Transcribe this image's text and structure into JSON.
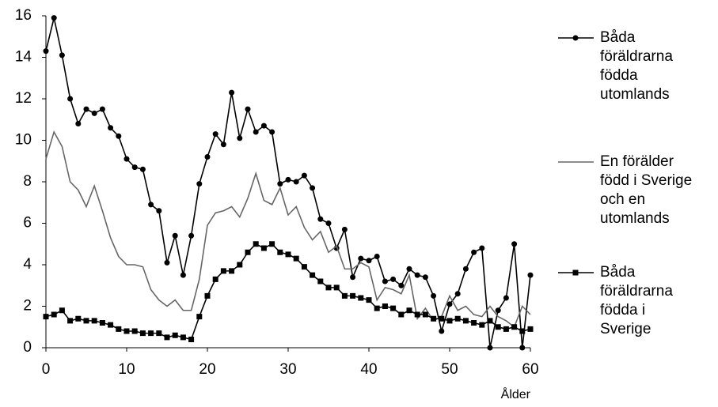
{
  "chart_data": {
    "type": "line",
    "x_label": "Ålder",
    "x": [
      0,
      1,
      2,
      3,
      4,
      5,
      6,
      7,
      8,
      9,
      10,
      11,
      12,
      13,
      14,
      15,
      16,
      17,
      18,
      19,
      20,
      21,
      22,
      23,
      24,
      25,
      26,
      27,
      28,
      29,
      30,
      31,
      32,
      33,
      34,
      35,
      36,
      37,
      38,
      39,
      40,
      41,
      42,
      43,
      44,
      45,
      46,
      47,
      48,
      49,
      50,
      51,
      52,
      53,
      54,
      55,
      56,
      57,
      58,
      59,
      60
    ],
    "xlim": [
      0,
      60
    ],
    "xticks": [
      0,
      10,
      20,
      30,
      40,
      50,
      60
    ],
    "ylim": [
      0,
      16
    ],
    "yticks": [
      0,
      2,
      4,
      6,
      8,
      10,
      12,
      14,
      16
    ],
    "grid": false,
    "series": [
      {
        "name": "Båda föräldrarna födda utomlands",
        "color": "#000000",
        "marker": "circle",
        "values": [
          14.3,
          15.9,
          14.1,
          12.0,
          10.8,
          11.5,
          11.3,
          11.5,
          10.6,
          10.2,
          9.1,
          8.7,
          8.6,
          6.9,
          6.6,
          4.1,
          5.4,
          3.5,
          5.4,
          7.9,
          9.2,
          10.3,
          9.8,
          12.3,
          10.1,
          11.5,
          10.4,
          10.7,
          10.4,
          7.9,
          8.1,
          8.0,
          8.3,
          7.7,
          6.2,
          6.0,
          4.8,
          5.7,
          3.4,
          4.3,
          4.2,
          4.4,
          3.2,
          3.3,
          3.0,
          3.8,
          3.5,
          3.4,
          2.5,
          0.8,
          2.1,
          2.6,
          3.8,
          4.6,
          4.8,
          0.0,
          1.8,
          2.4,
          5.0,
          0.0,
          3.5
        ]
      },
      {
        "name": "En förälder född i Sverige och en utomlands",
        "color": "#666666",
        "marker": null,
        "values": [
          9.1,
          10.4,
          9.7,
          8.0,
          7.6,
          6.8,
          7.8,
          6.6,
          5.3,
          4.4,
          4.0,
          4.0,
          3.9,
          2.8,
          2.3,
          2.0,
          2.3,
          1.8,
          1.8,
          3.3,
          5.9,
          6.5,
          6.6,
          6.8,
          6.3,
          7.2,
          8.4,
          7.1,
          6.9,
          7.7,
          6.4,
          6.8,
          5.8,
          5.2,
          5.6,
          4.6,
          4.9,
          3.8,
          3.8,
          4.1,
          3.9,
          2.3,
          2.9,
          2.8,
          2.6,
          3.5,
          1.4,
          1.9,
          1.3,
          1.5,
          2.5,
          1.8,
          2.0,
          1.6,
          1.5,
          2.0,
          1.5,
          1.3,
          1.0,
          2.0,
          1.6
        ]
      },
      {
        "name": "Båda föräldrarna födda i Sverige",
        "color": "#000000",
        "marker": "square",
        "values": [
          1.5,
          1.6,
          1.8,
          1.3,
          1.4,
          1.3,
          1.3,
          1.2,
          1.1,
          0.9,
          0.8,
          0.8,
          0.7,
          0.7,
          0.7,
          0.5,
          0.6,
          0.5,
          0.4,
          1.5,
          2.5,
          3.3,
          3.7,
          3.7,
          4.0,
          4.6,
          5.0,
          4.8,
          5.0,
          4.6,
          4.5,
          4.3,
          3.9,
          3.5,
          3.2,
          2.9,
          2.9,
          2.5,
          2.5,
          2.4,
          2.3,
          1.9,
          2.0,
          1.9,
          1.6,
          1.8,
          1.6,
          1.6,
          1.4,
          1.4,
          1.3,
          1.4,
          1.3,
          1.2,
          1.1,
          1.3,
          1.0,
          0.9,
          1.0,
          0.8,
          0.9
        ]
      }
    ]
  }
}
